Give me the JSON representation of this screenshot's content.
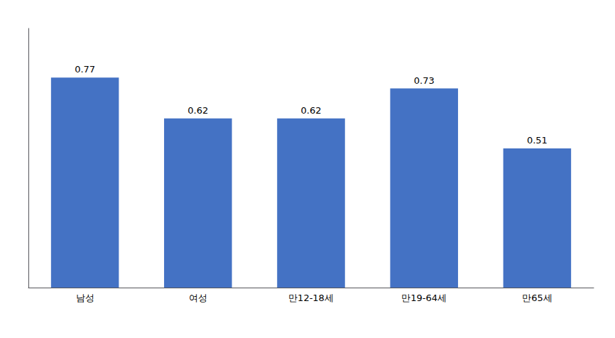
{
  "chart_data": {
    "type": "bar",
    "categories": [
      "남성",
      "여성",
      "만12-18세",
      "만19-64세",
      "만65세"
    ],
    "values": [
      0.77,
      0.62,
      0.62,
      0.73,
      0.51
    ],
    "color": "#4472C4",
    "ylim": [
      0,
      0.95
    ],
    "grid": false,
    "data_labels": true,
    "tick_labels": "x"
  }
}
